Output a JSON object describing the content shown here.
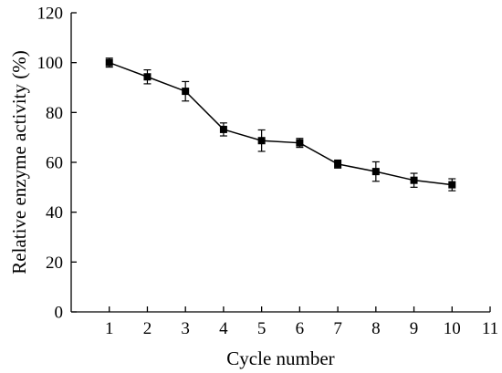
{
  "chart_data": {
    "type": "line",
    "title": "",
    "xlabel": "Cycle number",
    "ylabel": "Relative enzyme activity (%)",
    "xlim": [
      0,
      11
    ],
    "ylim": [
      0,
      120
    ],
    "xticks": [
      1,
      2,
      3,
      4,
      5,
      6,
      7,
      8,
      9,
      10,
      11
    ],
    "yticks": [
      0,
      20,
      40,
      60,
      80,
      100,
      120
    ],
    "grid": false,
    "legend": "none",
    "marker": "square",
    "color": "#000000",
    "series": [
      {
        "x": [
          1,
          2,
          3,
          4,
          5,
          6,
          7,
          8,
          9,
          10
        ],
        "y": [
          100,
          94.3,
          88.5,
          73.2,
          68.7,
          67.8,
          59.3,
          56.3,
          52.8,
          51.0
        ],
        "error": [
          1.8,
          2.8,
          3.9,
          2.6,
          4.3,
          1.8,
          1.6,
          3.9,
          2.8,
          2.4
        ]
      }
    ]
  }
}
